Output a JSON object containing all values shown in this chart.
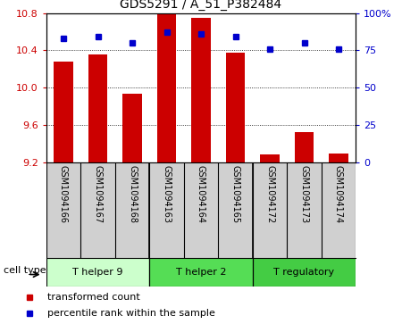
{
  "title": "GDS5291 / A_51_P382484",
  "samples": [
    "GSM1094166",
    "GSM1094167",
    "GSM1094168",
    "GSM1094163",
    "GSM1094164",
    "GSM1094165",
    "GSM1094172",
    "GSM1094173",
    "GSM1094174"
  ],
  "transformed_counts": [
    10.28,
    10.35,
    9.93,
    10.8,
    10.75,
    10.37,
    9.28,
    9.52,
    9.29
  ],
  "percentile_ranks": [
    83,
    84,
    80,
    87,
    86,
    84,
    76,
    80,
    76
  ],
  "y_min": 9.2,
  "y_max": 10.8,
  "y_ticks_left": [
    9.2,
    9.6,
    10.0,
    10.4,
    10.8
  ],
  "y_ticks_right": [
    0,
    25,
    50,
    75,
    100
  ],
  "bar_color": "#cc0000",
  "dot_color": "#0000cc",
  "cell_types": [
    {
      "label": "T helper 9",
      "start": 0,
      "end": 3,
      "color": "#ccffcc"
    },
    {
      "label": "T helper 2",
      "start": 3,
      "end": 6,
      "color": "#55dd55"
    },
    {
      "label": "T regulatory",
      "start": 6,
      "end": 9,
      "color": "#44cc44"
    }
  ],
  "cell_type_label": "cell type",
  "legend_items": [
    {
      "label": "transformed count",
      "color": "#cc0000"
    },
    {
      "label": "percentile rank within the sample",
      "color": "#0000cc"
    }
  ],
  "tick_label_color_left": "#cc0000",
  "tick_label_color_right": "#0000cc",
  "sample_bg_color": "#cccccc",
  "group_dividers": [
    2.5,
    5.5
  ]
}
